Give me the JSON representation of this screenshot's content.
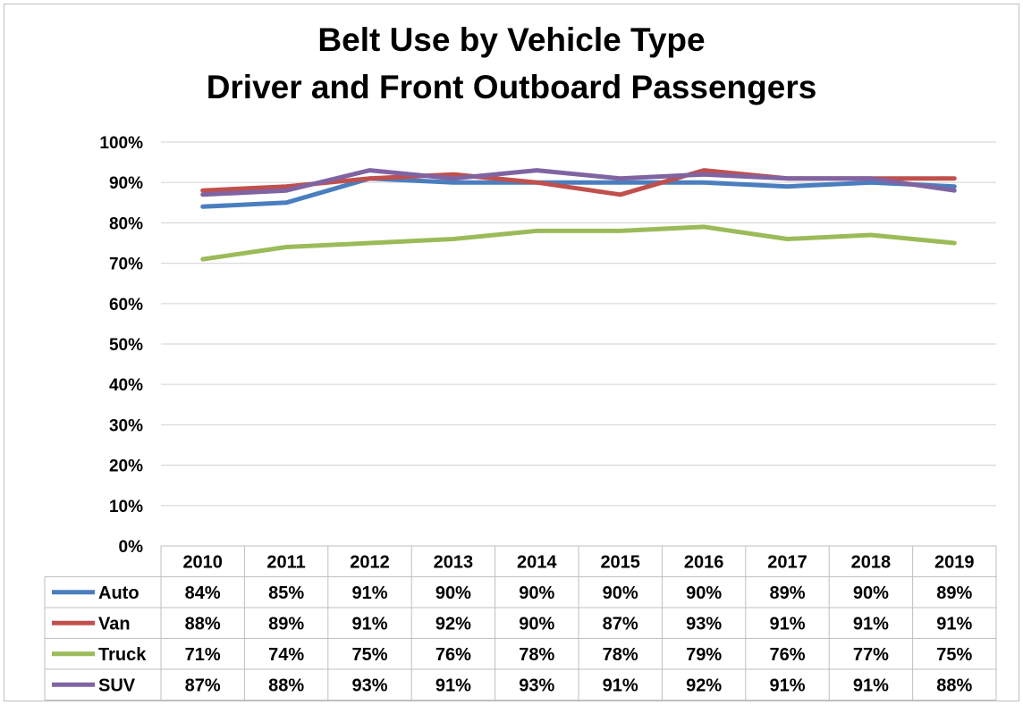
{
  "chart_data": {
    "type": "line",
    "title": "Belt Use by Vehicle Type",
    "subtitle": "Driver and Front Outboard Passengers",
    "x": [
      "2010",
      "2011",
      "2012",
      "2013",
      "2014",
      "2015",
      "2016",
      "2017",
      "2018",
      "2019"
    ],
    "ylim": [
      0,
      100
    ],
    "yticks": [
      "0%",
      "10%",
      "20%",
      "30%",
      "40%",
      "50%",
      "60%",
      "70%",
      "80%",
      "90%",
      "100%"
    ],
    "grid": true,
    "legend_placement": "data table below plot",
    "series": [
      {
        "name": "Auto",
        "color": "#4a7ebf",
        "values": [
          84,
          85,
          91,
          90,
          90,
          90,
          90,
          89,
          90,
          89
        ],
        "labels": [
          "84%",
          "85%",
          "91%",
          "90%",
          "90%",
          "90%",
          "90%",
          "89%",
          "90%",
          "89%"
        ]
      },
      {
        "name": "Van",
        "color": "#c0504d",
        "values": [
          88,
          89,
          91,
          92,
          90,
          87,
          93,
          91,
          91,
          91
        ],
        "labels": [
          "88%",
          "89%",
          "91%",
          "92%",
          "90%",
          "87%",
          "93%",
          "91%",
          "91%",
          "91%"
        ]
      },
      {
        "name": "Truck",
        "color": "#9bbb59",
        "values": [
          71,
          74,
          75,
          76,
          78,
          78,
          79,
          76,
          77,
          75
        ],
        "labels": [
          "71%",
          "74%",
          "75%",
          "76%",
          "78%",
          "78%",
          "79%",
          "76%",
          "77%",
          "75%"
        ]
      },
      {
        "name": "SUV",
        "color": "#8064a2",
        "values": [
          87,
          88,
          93,
          91,
          93,
          91,
          92,
          91,
          91,
          88
        ],
        "labels": [
          "87%",
          "88%",
          "93%",
          "91%",
          "93%",
          "91%",
          "92%",
          "91%",
          "91%",
          "88%"
        ]
      }
    ]
  }
}
